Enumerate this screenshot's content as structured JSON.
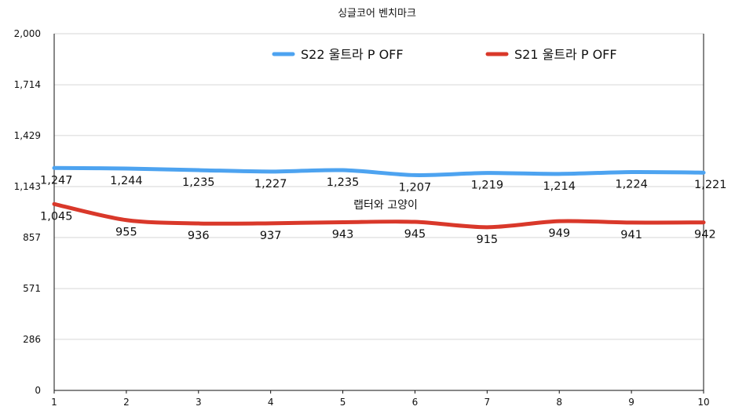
{
  "chart_data": {
    "type": "line",
    "title": "싱글코어 벤치마크",
    "x": [
      1,
      2,
      3,
      4,
      5,
      6,
      7,
      8,
      9,
      10
    ],
    "x_tick_labels": [
      "1",
      "2",
      "3",
      "4",
      "5",
      "6",
      "7",
      "8",
      "9",
      "10"
    ],
    "y_tick_labels": [
      "0",
      "286",
      "571",
      "857",
      "1,143",
      "1,429",
      "1,714",
      "2,000"
    ],
    "y_ticks": [
      0,
      286,
      571,
      857,
      1143,
      1429,
      1714,
      2000
    ],
    "ylim": [
      0,
      2000
    ],
    "xlabel": "",
    "ylabel": "",
    "grid": true,
    "legend_position": "top",
    "series": [
      {
        "name": "S22 울트라 P OFF",
        "color": "#4da3f0",
        "values": [
          1247,
          1244,
          1235,
          1227,
          1235,
          1207,
          1219,
          1214,
          1224,
          1221
        ],
        "labels": [
          "1,247",
          "1,244",
          "1,235",
          "1,227",
          "1,235",
          "1,207",
          "1,219",
          "1,214",
          "1,224",
          "1,221"
        ]
      },
      {
        "name": "S21 울트라 P OFF",
        "color": "#d9382a",
        "values": [
          1045,
          955,
          936,
          937,
          943,
          945,
          915,
          949,
          941,
          942
        ],
        "labels": [
          "1,045",
          "955",
          "936",
          "937",
          "943",
          "945",
          "915",
          "949",
          "941",
          "942"
        ]
      }
    ],
    "annotation": "랩터와 고양이"
  }
}
